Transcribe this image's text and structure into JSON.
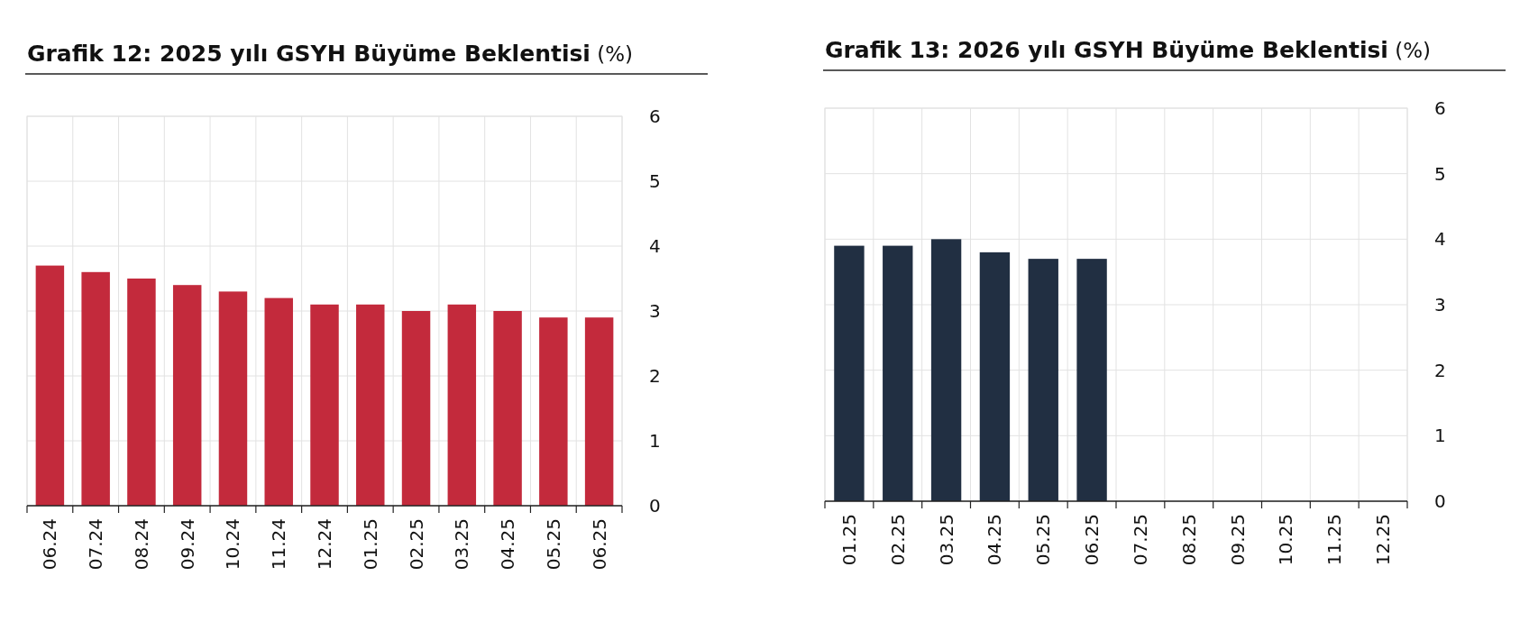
{
  "chart_data": [
    {
      "type": "bar",
      "title": "Grafik 12: 2025 yılı GSYH Büyüme Beklentisi (%)",
      "categories": [
        "06.24",
        "07.24",
        "08.24",
        "09.24",
        "10.24",
        "11.24",
        "12.24",
        "01.25",
        "02.25",
        "03.25",
        "04.25",
        "05.25",
        "06.25"
      ],
      "values": [
        3.7,
        3.6,
        3.5,
        3.4,
        3.3,
        3.2,
        3.1,
        3.1,
        3.0,
        3.1,
        3.0,
        2.9,
        2.9
      ],
      "color": "#c32a3c",
      "ylim": [
        0,
        6
      ],
      "yticks": [
        0,
        1,
        2,
        3,
        4,
        5,
        6
      ],
      "grid": true
    },
    {
      "type": "bar",
      "title": "Grafik 13: 2026 yılı GSYH Büyüme Beklentisi (%)",
      "categories": [
        "01.25",
        "02.25",
        "03.25",
        "04.25",
        "05.25",
        "06.25",
        "07.25",
        "08.25",
        "09.25",
        "10.25",
        "11.25",
        "12.25"
      ],
      "values": [
        3.9,
        3.9,
        4.0,
        3.8,
        3.7,
        3.7,
        null,
        null,
        null,
        null,
        null,
        null
      ],
      "color": "#212f42",
      "ylim": [
        0,
        6
      ],
      "yticks": [
        0,
        1,
        2,
        3,
        4,
        5,
        6
      ],
      "grid": true
    }
  ]
}
